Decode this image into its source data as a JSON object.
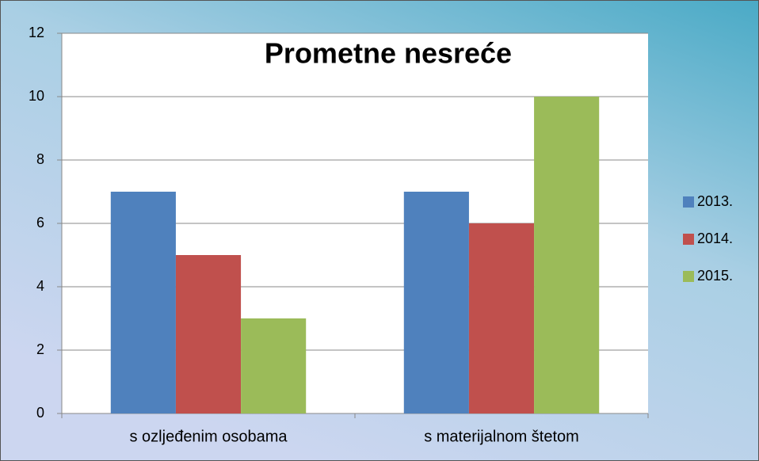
{
  "chart_data": {
    "type": "bar",
    "title": "Prometne nesreće",
    "categories": [
      "s ozljeđenim osobama",
      "s materijalnom štetom"
    ],
    "series": [
      {
        "name": "2013.",
        "color": "#4f81bd",
        "values": [
          7,
          7
        ]
      },
      {
        "name": "2014.",
        "color": "#c0504d",
        "values": [
          5,
          6
        ]
      },
      {
        "name": "2015.",
        "color": "#9bbb59",
        "values": [
          3,
          10
        ]
      }
    ],
    "ylim": [
      0,
      12
    ],
    "yticks": [
      0,
      2,
      4,
      6,
      8,
      10,
      12
    ],
    "grid": true,
    "legend": "right"
  }
}
